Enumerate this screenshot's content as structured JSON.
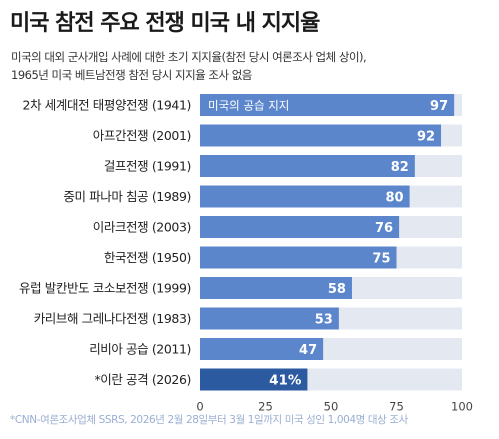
{
  "header": {
    "title": "미국 참전 주요 전쟁 미국 내 지지율",
    "subtitle_lines": [
      "미국의 대외 군사개입 사례에 대한 초기 지지율(참전 당시 여론조사 업체 상이),",
      "1965년 미국 베트남전쟁 참전 당시 지지율 조사 없음"
    ]
  },
  "source": "*CNN-여론조사업체 SSRS, 2026년 2월 28일부터 3월 1일까지 미국 성인 1,004명 대상 조사",
  "colors": {
    "bar": "#5b86cc",
    "bar_highlight": "#2b5aa1",
    "track": "#e3e8f1",
    "label": "#222222",
    "value_text": "#ffffff",
    "axis_text": "#444444",
    "source_text": "#9aaed2"
  },
  "chart_data": {
    "type": "bar",
    "orientation": "horizontal",
    "categories": [
      "2차 세계대전 태평양전쟁 (1941)",
      "아프간전쟁 (2001)",
      "걸프전쟁 (1991)",
      "중미 파나마 침공 (1989)",
      "이라크전쟁 (2003)",
      "한국전쟁 (1950)",
      "유럽 발칸반도 코소보전쟁 (1999)",
      "카리브해 그레나다전쟁 (1983)",
      "리비아 공습 (2011)",
      "*이란 공격 (2026)"
    ],
    "series": [
      {
        "name": "미국의 공습 지지",
        "values": [
          97,
          92,
          82,
          80,
          76,
          75,
          58,
          53,
          47,
          41
        ]
      }
    ],
    "value_labels": [
      "97",
      "92",
      "82",
      "80",
      "76",
      "75",
      "58",
      "53",
      "47",
      "41%"
    ],
    "highlight_index": 9,
    "xlim": [
      0,
      100
    ],
    "xticks": [
      "0",
      "25",
      "50",
      "75",
      "100"
    ],
    "xtick_values": [
      0,
      25,
      50,
      75,
      100
    ],
    "title": "",
    "xlabel": "",
    "ylabel": "",
    "grid": false,
    "legend": "inside-first-bar"
  }
}
